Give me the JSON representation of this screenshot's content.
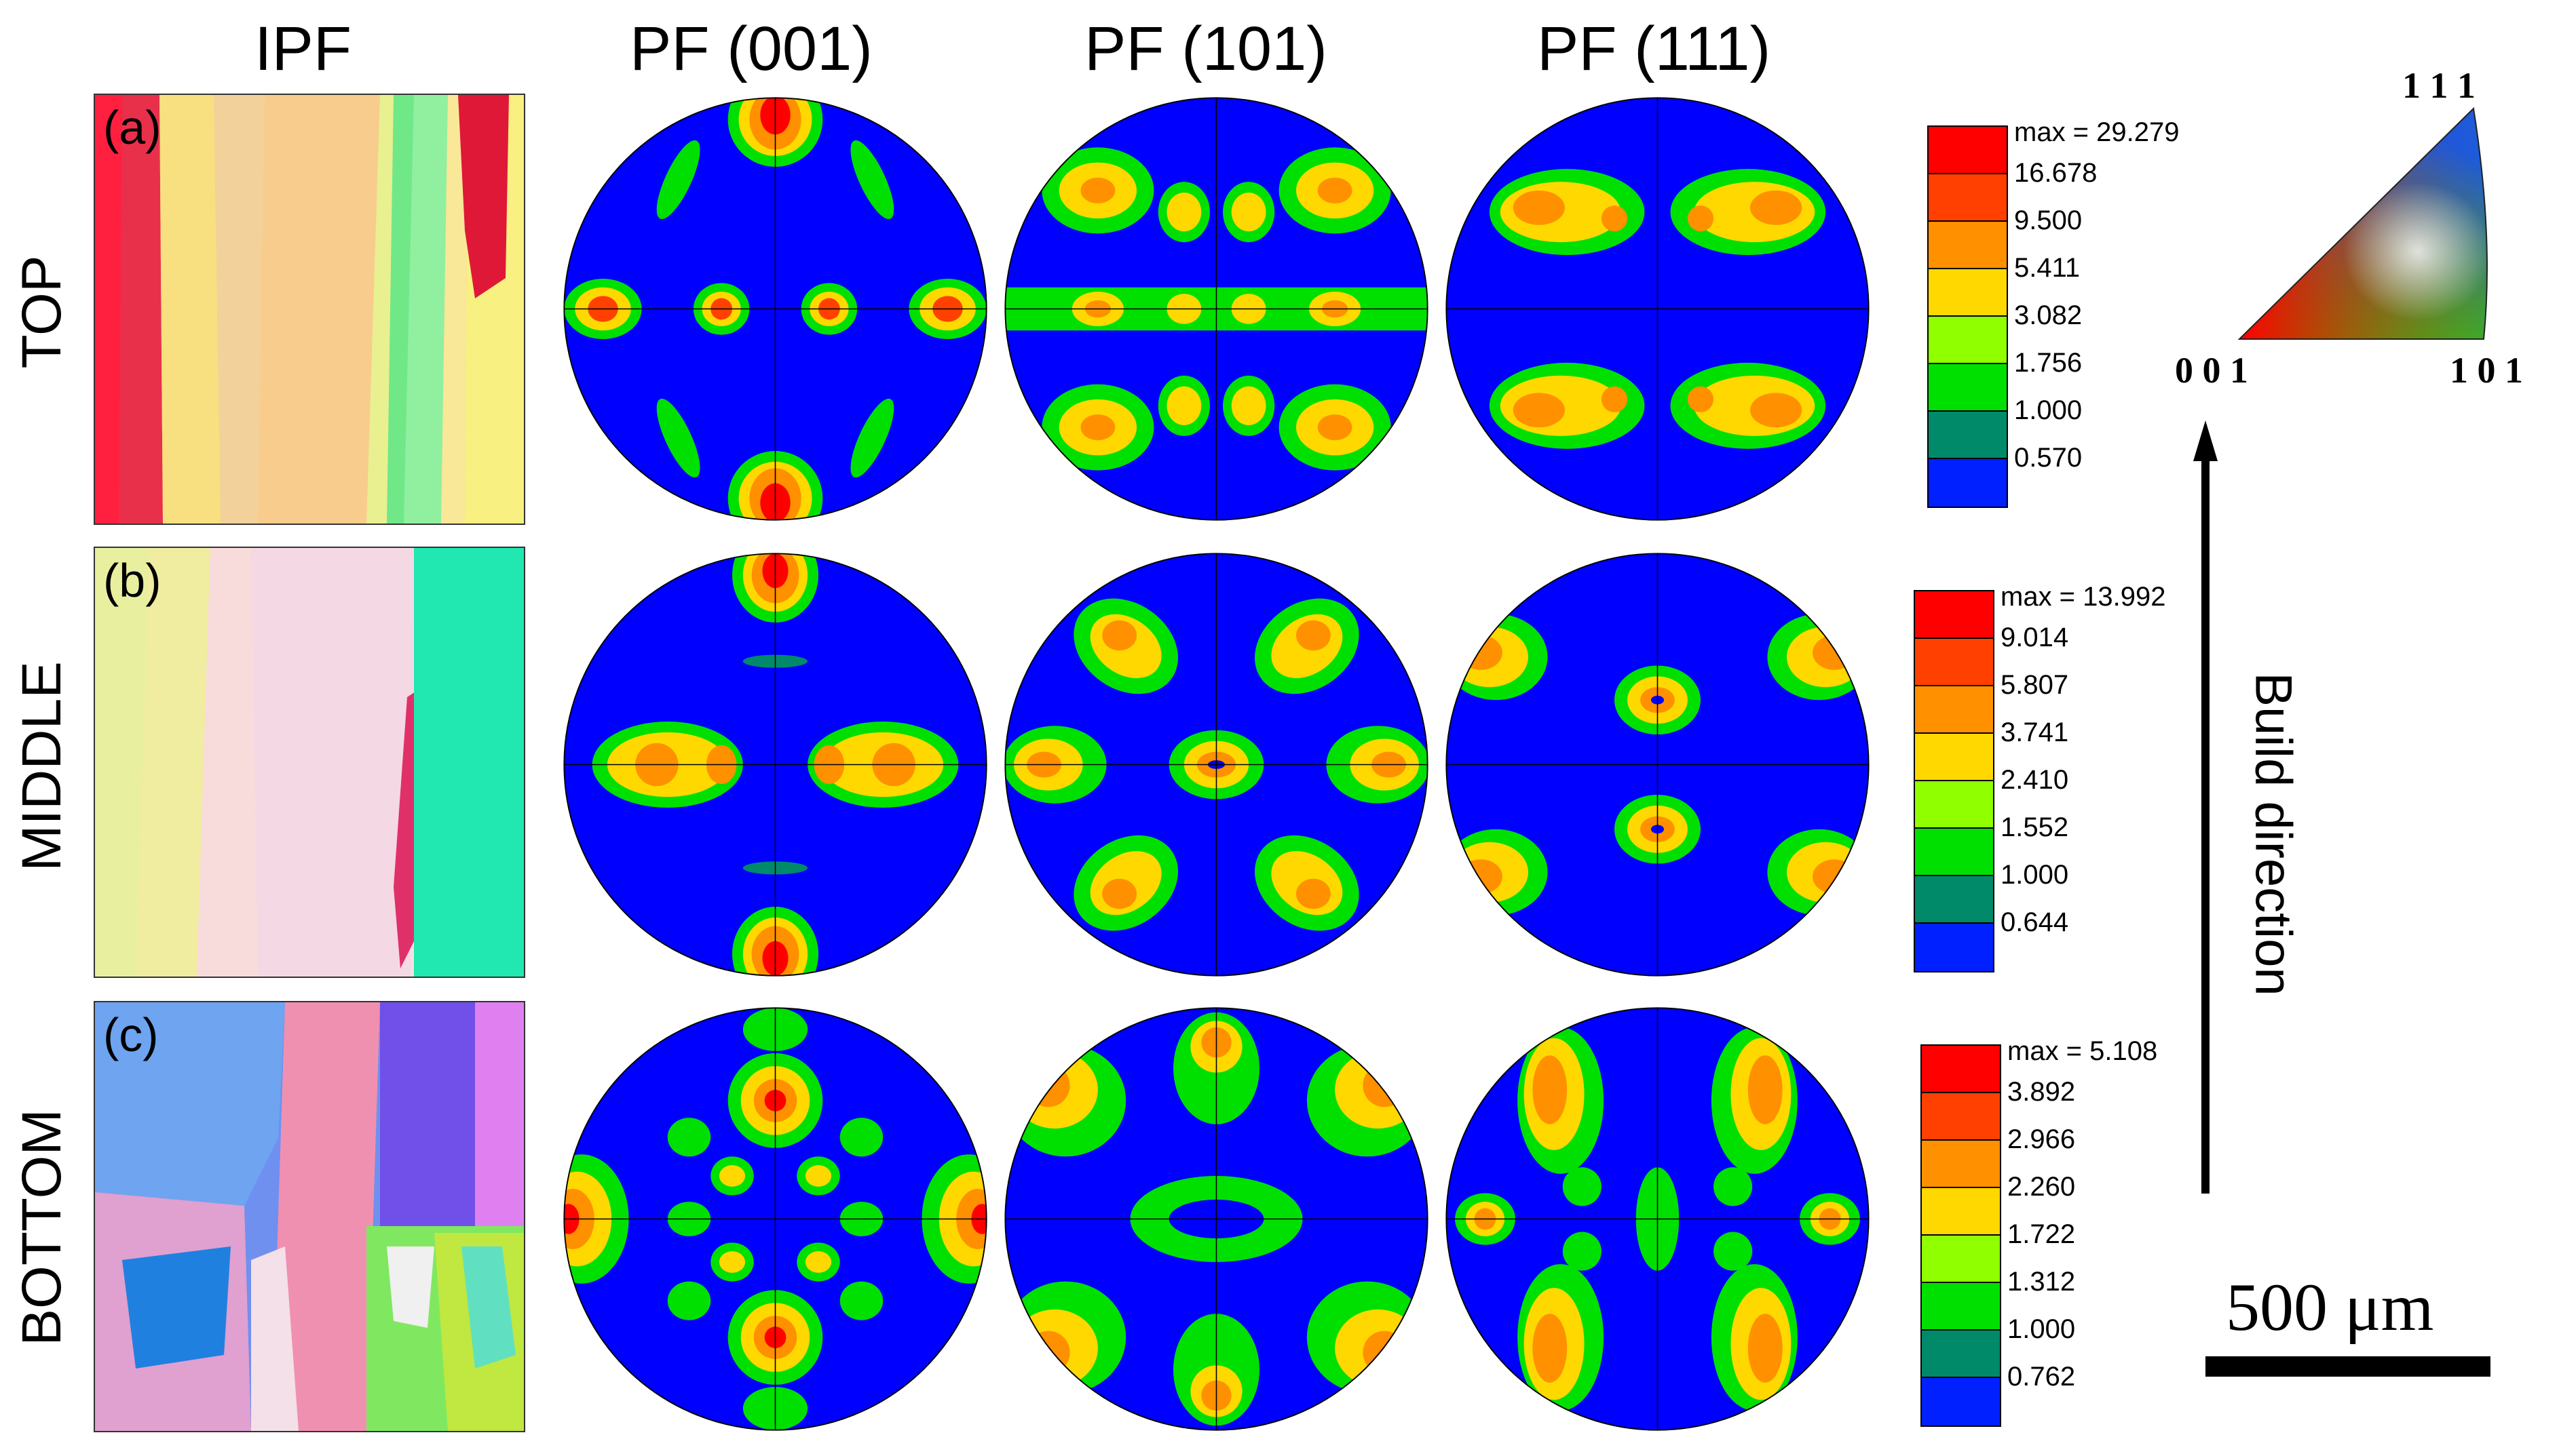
{
  "columns": {
    "ipf": "IPF",
    "pf001": "PF (001)",
    "pf101": "PF (101)",
    "pf111": "PF (111)"
  },
  "rows": [
    {
      "label": "TOP",
      "panel": "(a)",
      "legend": {
        "max": "max = 29.279",
        "levels": [
          "16.678",
          "9.500",
          "5.411",
          "3.082",
          "1.756",
          "1.000",
          "0.570"
        ]
      }
    },
    {
      "label": "MIDDLE",
      "panel": "(b)",
      "legend": {
        "max": "max = 13.992",
        "levels": [
          "9.014",
          "5.807",
          "3.741",
          "2.410",
          "1.552",
          "1.000",
          "0.644"
        ]
      }
    },
    {
      "label": "BOTTOM",
      "panel": "(c)",
      "legend": {
        "max": "max = 5.108",
        "levels": [
          "3.892",
          "2.966",
          "2.260",
          "1.722",
          "1.312",
          "1.000",
          "0.762"
        ]
      }
    }
  ],
  "legend_colors": [
    "#ff0000",
    "#ff4000",
    "#ff9000",
    "#ffd800",
    "#90ff00",
    "#00e000",
    "#008a6a",
    "#0020ff"
  ],
  "ipf_key": {
    "v111": "1 1 1",
    "v001": "0 0 1",
    "v101": "1 0 1"
  },
  "build_direction": "Build direction",
  "scale_bar": "500 μm",
  "pole_figure_colors": {
    "background": "#0000ff",
    "level1": "#008a6a",
    "level2": "#00e000",
    "level3": "#90ff00",
    "level4": "#ffd800",
    "level5": "#ff9000",
    "level6": "#ff4000",
    "level7": "#ff0000"
  }
}
